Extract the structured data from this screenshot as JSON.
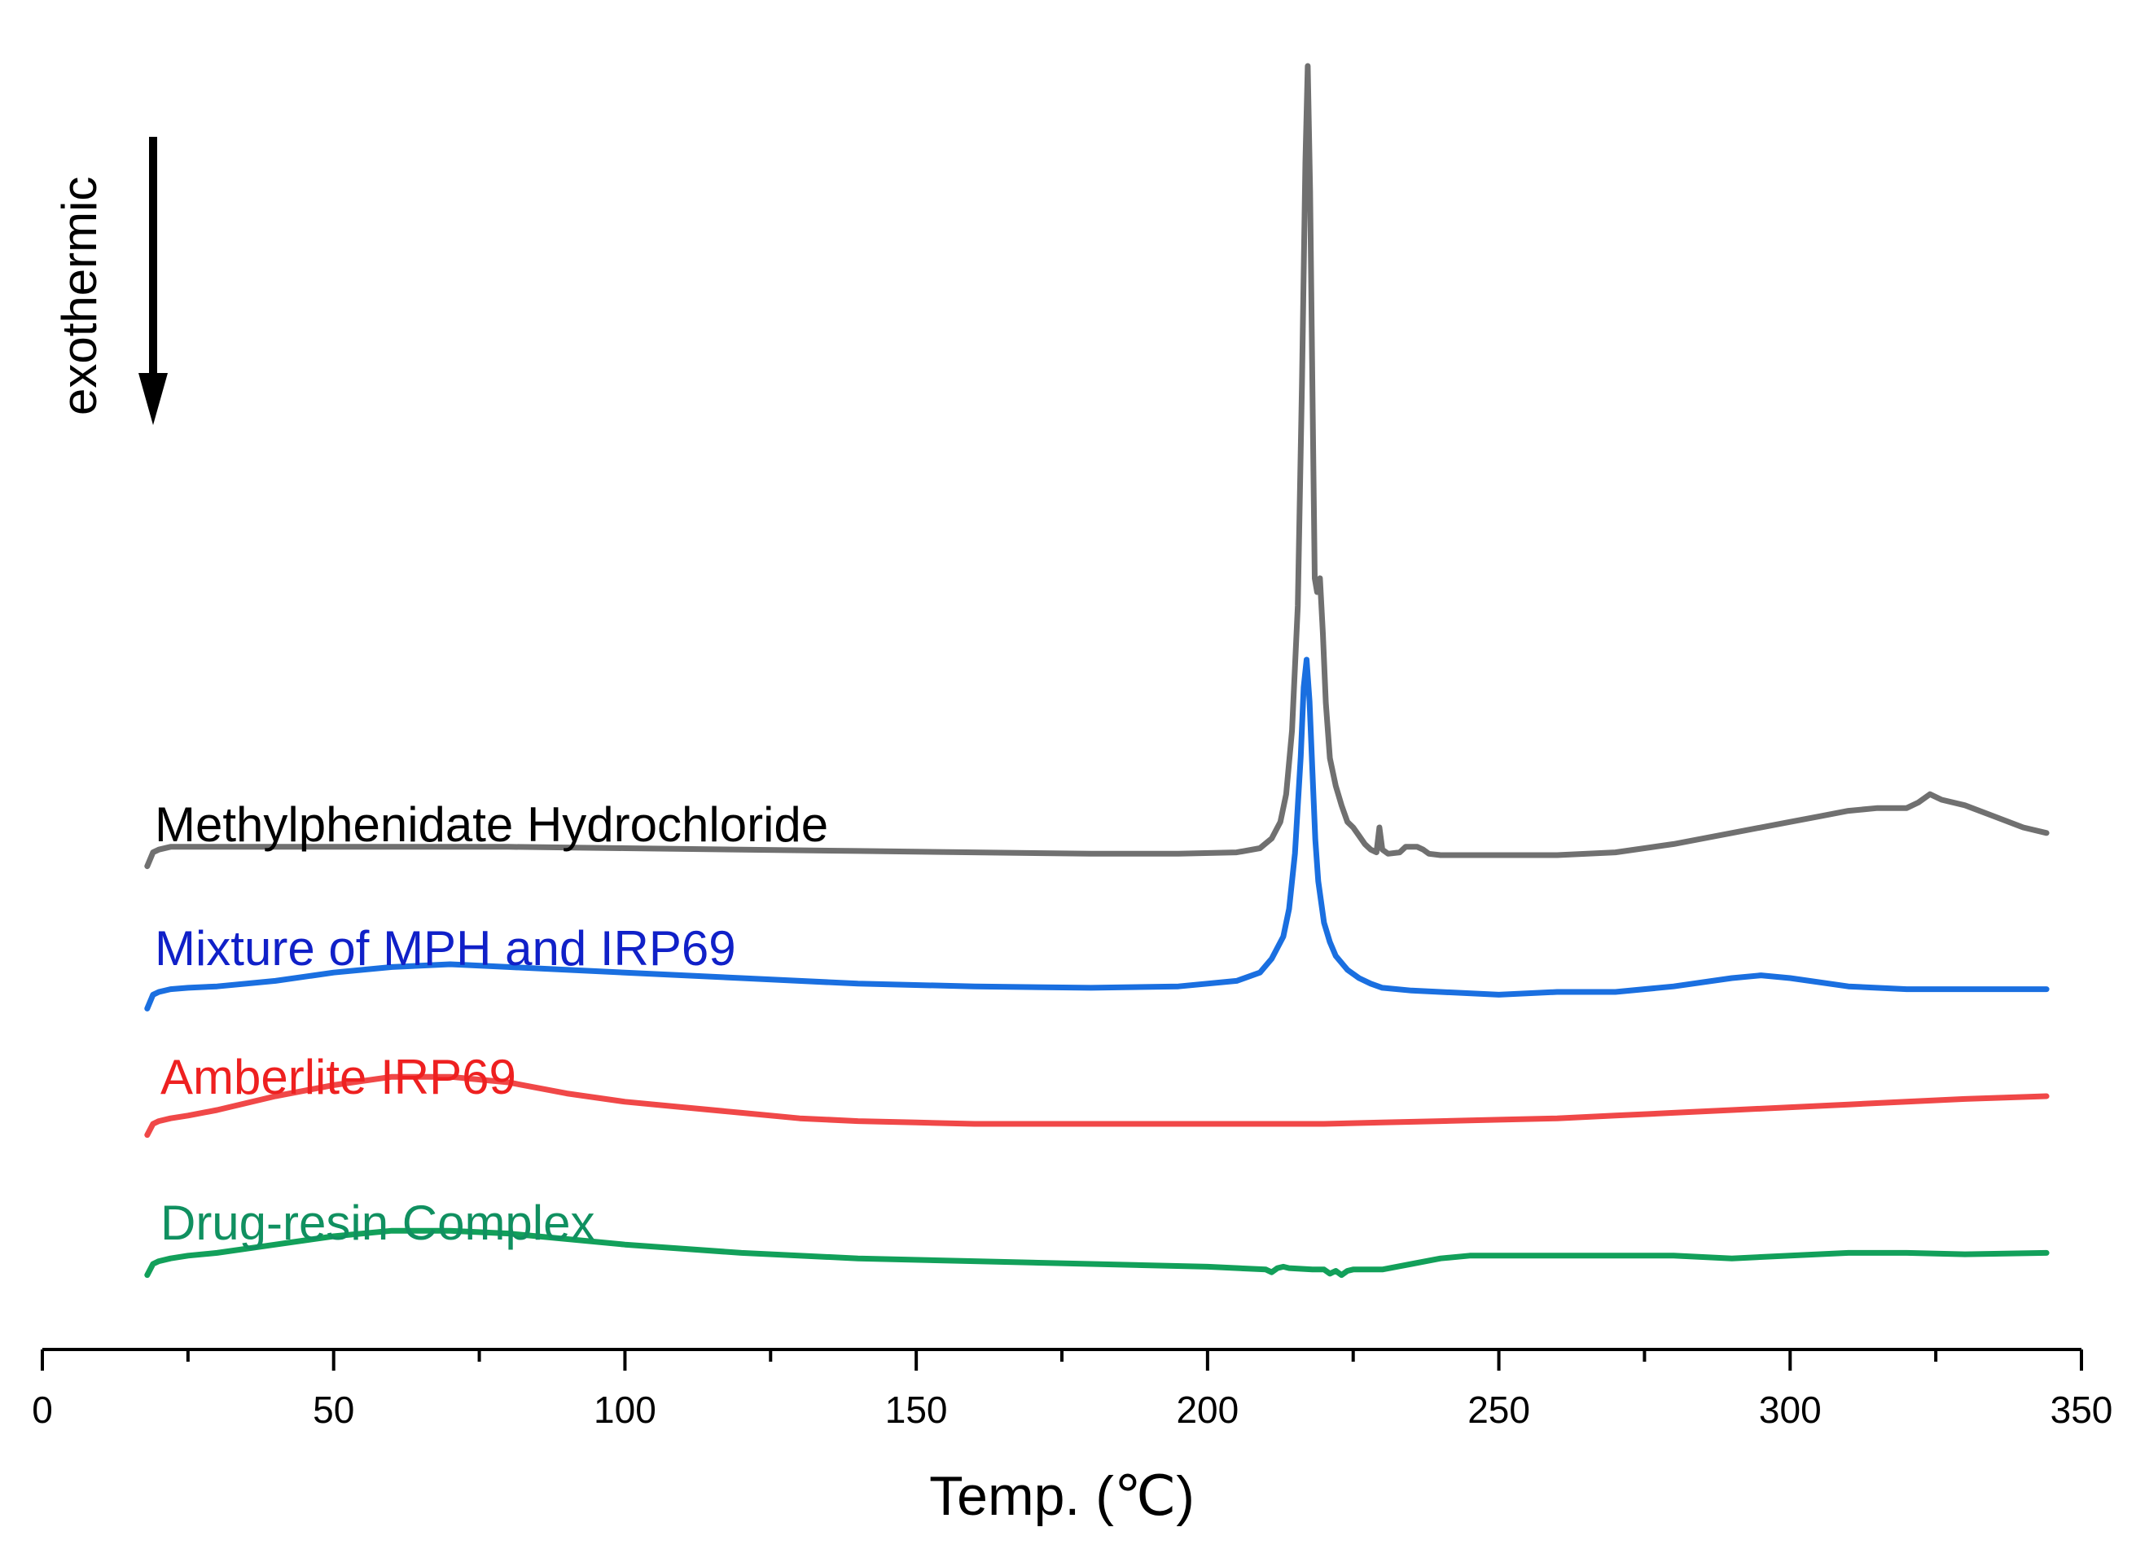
{
  "chart_data": {
    "type": "line",
    "title": "",
    "xlabel": "Temp. (℃)",
    "ylabel": "",
    "xlim": [
      0,
      350
    ],
    "x_ticks": [
      "0",
      "50",
      "100",
      "150",
      "200",
      "250",
      "300",
      "350"
    ],
    "y_axis_visible": false,
    "annotation": {
      "text": "exothermic",
      "arrow_direction": "down"
    },
    "series": [
      {
        "name": "Methylphenidate Hydrochloride",
        "color": "#707070",
        "label_color": "#000000",
        "offset": 3,
        "x": [
          18,
          19,
          20,
          22,
          25,
          40,
          60,
          80,
          100,
          120,
          140,
          160,
          180,
          195,
          205,
          209,
          211,
          212.5,
          213.5,
          214.5,
          215.5,
          216.2,
          216.8,
          217.2,
          217.6,
          218,
          218.4,
          218.8,
          219.3,
          219.8,
          220.3,
          221,
          222,
          223,
          224,
          225,
          226,
          227,
          228,
          229,
          229.5,
          230,
          231,
          233,
          234,
          235,
          236,
          237,
          238,
          240,
          250,
          260,
          270,
          280,
          290,
          300,
          305,
          310,
          315,
          320,
          322,
          324,
          326,
          330,
          335,
          340,
          344
        ],
        "values": [
          -4,
          1,
          2,
          3,
          3,
          3,
          3,
          3,
          2.5,
          2,
          1.5,
          1,
          0.5,
          0.5,
          1,
          2.5,
          6,
          12,
          22,
          45,
          90,
          170,
          250,
          285,
          240,
          170,
          100,
          95,
          100,
          80,
          55,
          35,
          25,
          18,
          12,
          10,
          7,
          4,
          2,
          1,
          10,
          2,
          0.5,
          1,
          3,
          3,
          3,
          2,
          0.5,
          0,
          0,
          0,
          1,
          4,
          8,
          12,
          14,
          16,
          17,
          17,
          19,
          22,
          20,
          18,
          14,
          10,
          8
        ]
      },
      {
        "name": "Mixture of MPH and IRP69",
        "color": "#1a6fe0",
        "label_color": "#1020c8",
        "offset": 2,
        "x": [
          18,
          19,
          20,
          22,
          25,
          30,
          40,
          50,
          60,
          70,
          80,
          100,
          120,
          140,
          160,
          180,
          195,
          205,
          209,
          211,
          213,
          214,
          215,
          216,
          216.5,
          217,
          217.5,
          218,
          218.5,
          219,
          220,
          221,
          222,
          224,
          226,
          228,
          230,
          235,
          240,
          250,
          260,
          270,
          280,
          290,
          295,
          300,
          310,
          320,
          330,
          344
        ],
        "values": [
          -6,
          -1,
          0,
          1,
          1.5,
          2,
          4,
          7,
          9,
          10,
          9,
          7,
          5,
          3,
          2,
          1.5,
          2,
          4,
          7,
          12,
          20,
          30,
          50,
          85,
          110,
          120,
          105,
          80,
          55,
          40,
          25,
          18,
          13,
          8,
          5,
          3,
          1.5,
          0.5,
          0,
          -1,
          0,
          0,
          2,
          5,
          6,
          5,
          2,
          1,
          1,
          1
        ]
      },
      {
        "name": "Amberlite IRP69",
        "color": "#f04848",
        "label_color": "#ee2020",
        "offset": 1,
        "x": [
          18,
          19,
          20,
          22,
          25,
          30,
          40,
          50,
          60,
          70,
          80,
          90,
          100,
          110,
          120,
          130,
          140,
          150,
          160,
          170,
          180,
          190,
          200,
          210,
          220,
          230,
          240,
          250,
          260,
          270,
          280,
          290,
          300,
          310,
          320,
          330,
          344
        ],
        "values": [
          -4,
          0,
          1,
          2,
          3,
          5,
          10,
          14,
          17,
          17,
          15,
          11,
          8,
          6,
          4,
          2,
          1,
          0.5,
          0,
          0,
          0,
          0,
          0,
          0,
          0,
          0.5,
          1,
          1.5,
          2,
          3,
          4,
          5,
          6,
          7,
          8,
          9,
          10
        ]
      },
      {
        "name": "Drug-resin Complex",
        "color": "#12a05a",
        "label_color": "#109060",
        "offset": 0,
        "x": [
          18,
          19,
          20,
          22,
          25,
          30,
          40,
          50,
          60,
          70,
          80,
          100,
          120,
          140,
          160,
          180,
          200,
          210,
          211,
          212,
          213,
          214,
          218,
          220,
          221,
          222,
          223,
          224,
          225,
          228,
          230,
          235,
          240,
          245,
          250,
          260,
          270,
          280,
          290,
          300,
          310,
          320,
          330,
          344
        ],
        "values": [
          -4,
          0,
          1,
          2,
          3,
          4,
          7,
          10,
          12,
          12,
          11,
          7,
          4,
          2,
          1,
          0,
          -1,
          -2,
          -3,
          -1.5,
          -1,
          -1.5,
          -2,
          -2,
          -3.5,
          -2.5,
          -4,
          -2.5,
          -2,
          -2,
          -2,
          0,
          2,
          3,
          3,
          3,
          3,
          3,
          2,
          3,
          4,
          4,
          3.5,
          4
        ]
      }
    ]
  }
}
